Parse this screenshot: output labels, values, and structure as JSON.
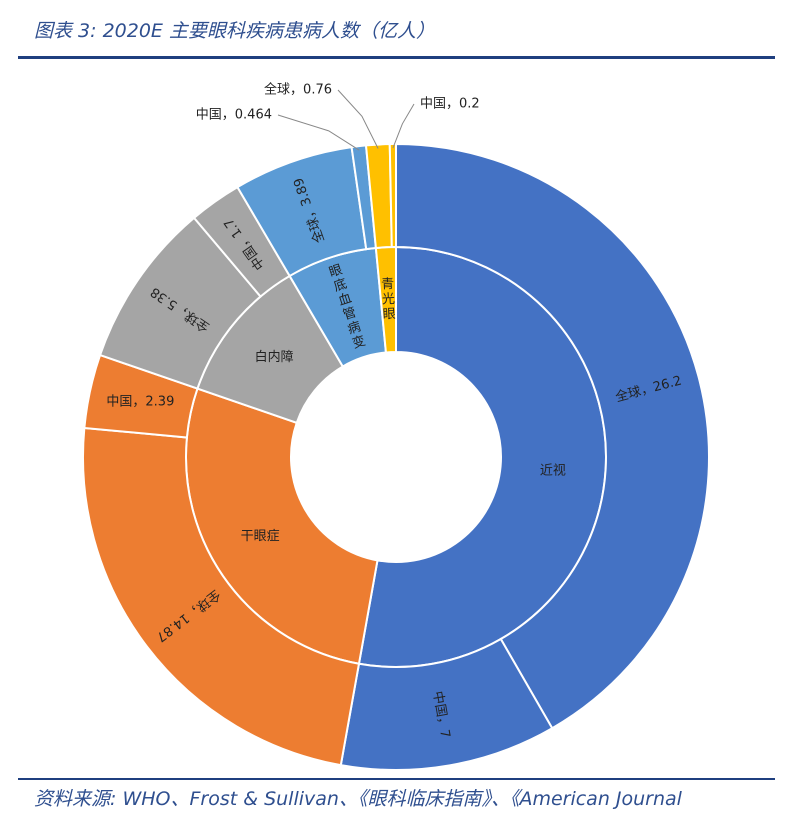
{
  "title": "图表 3:  2020E 主要眼科疾病患病人数（亿人）",
  "source": "资料来源: WHO、Frost & Sullivan、《眼科临床指南》、《American Journal",
  "chart_data": {
    "type": "pie",
    "subtype": "sunburst-donut",
    "title": "图表 3:  2020E 主要眼科疾病患病人数（亿人）",
    "inner": [
      {
        "name": "近视",
        "value": 33.2,
        "color": "#4472c4"
      },
      {
        "name": "干眼症",
        "value": 17.26,
        "color": "#ed7d31"
      },
      {
        "name": "白内障",
        "value": 7.08,
        "color": "#a5a5a5"
      },
      {
        "name": "眼底血管病变",
        "value": 4.354,
        "color": "#5b9bd5"
      },
      {
        "name": "青光眼",
        "value": 0.96,
        "color": "#ffc000"
      }
    ],
    "outer": [
      {
        "parent": "近视",
        "label": "全球，26.2",
        "value": 26.2,
        "color": "#4472c4"
      },
      {
        "parent": "近视",
        "label": "中国，7",
        "value": 7,
        "color": "#4472c4"
      },
      {
        "parent": "干眼症",
        "label": "全球，14.87",
        "value": 14.87,
        "color": "#ed7d31"
      },
      {
        "parent": "干眼症",
        "label": "中国，2.39",
        "value": 2.39,
        "color": "#ed7d31"
      },
      {
        "parent": "白内障",
        "label": "全球，5.38",
        "value": 5.38,
        "color": "#a5a5a5"
      },
      {
        "parent": "白内障",
        "label": "中国，1.7",
        "value": 1.7,
        "color": "#a5a5a5"
      },
      {
        "parent": "眼底血管病变",
        "label": "全球，3.89",
        "value": 3.89,
        "color": "#5b9bd5"
      },
      {
        "parent": "眼底血管病变",
        "label": "中国，0.464",
        "value": 0.464,
        "color": "#5b9bd5"
      },
      {
        "parent": "青光眼",
        "label": "全球，0.76",
        "value": 0.76,
        "color": "#ffc000"
      },
      {
        "parent": "青光眼",
        "label": "中国，0.2",
        "value": 0.2,
        "color": "#ffc000"
      }
    ]
  }
}
